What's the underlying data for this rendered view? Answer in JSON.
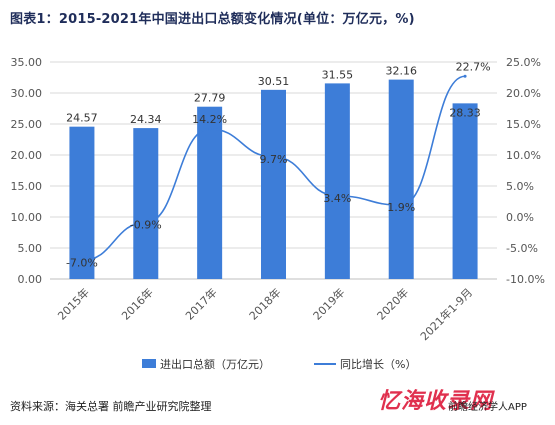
{
  "title": "图表1：2015-2021年中国进出口总额变化情况(单位：万亿元，%)",
  "source": "资料来源：海关总署 前瞻产业研究院整理",
  "watermark_brand": "忆海收录网",
  "watermark_logo": "前瞻经济学人APP",
  "chart_data": {
    "type": "bar",
    "categories": [
      "2015年",
      "2016年",
      "2017年",
      "2018年",
      "2019年",
      "2020年",
      "2021年1-9月"
    ],
    "series": [
      {
        "name": "进出口总额（万亿元）",
        "type": "bar",
        "axis": "left",
        "color": "#3d7dd8",
        "values": [
          24.57,
          24.34,
          27.79,
          30.51,
          31.55,
          32.16,
          28.33
        ],
        "labels": [
          "24.57",
          "24.34",
          "27.79",
          "30.51",
          "31.55",
          "32.16",
          "28.33"
        ]
      },
      {
        "name": "同比增长（%）",
        "type": "line",
        "axis": "right",
        "color": "#3d7dd8",
        "values": [
          -7.0,
          -0.9,
          14.2,
          9.7,
          3.4,
          1.9,
          22.7
        ],
        "labels": [
          "-7.0%",
          "-0.9%",
          "14.2%",
          "9.7%",
          "3.4%",
          "1.9%",
          "22.7%"
        ]
      }
    ],
    "y_left": {
      "ylim": [
        0,
        35
      ],
      "ticks": [
        "0.00",
        "5.00",
        "10.00",
        "15.00",
        "20.00",
        "25.00",
        "30.00",
        "35.00"
      ]
    },
    "y_right": {
      "ylim": [
        -10,
        25
      ],
      "ticks": [
        "-10.0%",
        "-5.0%",
        "0.0%",
        "5.0%",
        "10.0%",
        "15.0%",
        "20.0%",
        "25.0%"
      ]
    },
    "grid": true,
    "legend_position": "bottom"
  }
}
